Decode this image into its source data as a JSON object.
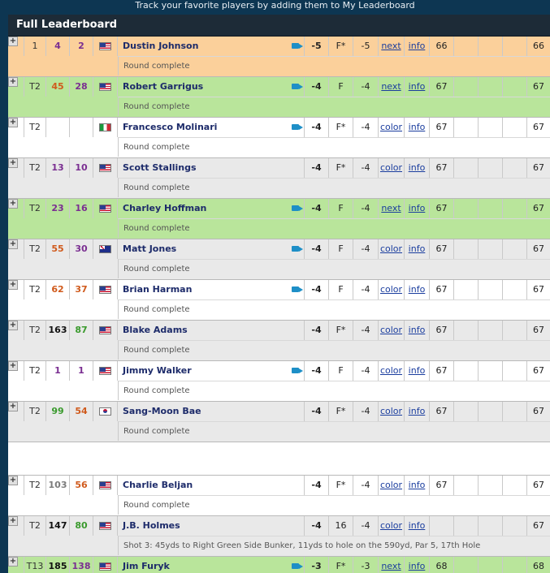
{
  "banner": {
    "text": "Track your favorite players by adding them to My Leaderboard"
  },
  "leaderboard": {
    "title": "Full Leaderboard",
    "players": [
      {
        "pos": "1",
        "r1": "4",
        "r1c": "num-purple",
        "r2": "2",
        "r2c": "num-purple",
        "flag": "us",
        "name": "Dustin Johnson",
        "cam": true,
        "tot": "-5",
        "thru": "F*",
        "today": "-5",
        "link1": "next",
        "link2": "info",
        "r": "66",
        "sum": "66",
        "status": "Round complete",
        "bg": "orange"
      },
      {
        "pos": "T2",
        "r1": "45",
        "r1c": "num-orange",
        "r2": "28",
        "r2c": "num-purple",
        "flag": "us",
        "name": "Robert Garrigus",
        "cam": true,
        "tot": "-4",
        "thru": "F",
        "today": "-4",
        "link1": "next",
        "link2": "info",
        "r": "67",
        "sum": "67",
        "status": "Round complete",
        "bg": "green"
      },
      {
        "pos": "T2",
        "r1": "",
        "r1c": "num-black",
        "r2": "",
        "r2c": "num-black",
        "flag": "it",
        "name": "Francesco Molinari",
        "cam": true,
        "tot": "-4",
        "thru": "F*",
        "today": "-4",
        "link1": "color",
        "link2": "info",
        "r": "67",
        "sum": "67",
        "status": "Round complete",
        "bg": "white"
      },
      {
        "pos": "T2",
        "r1": "13",
        "r1c": "num-purple",
        "r2": "10",
        "r2c": "num-purple",
        "flag": "us",
        "name": "Scott Stallings",
        "cam": false,
        "tot": "-4",
        "thru": "F*",
        "today": "-4",
        "link1": "color",
        "link2": "info",
        "r": "67",
        "sum": "67",
        "status": "Round complete",
        "bg": "gray"
      },
      {
        "pos": "T2",
        "r1": "23",
        "r1c": "num-purple",
        "r2": "16",
        "r2c": "num-purple",
        "flag": "us",
        "name": "Charley Hoffman",
        "cam": true,
        "tot": "-4",
        "thru": "F",
        "today": "-4",
        "link1": "next",
        "link2": "info",
        "r": "67",
        "sum": "67",
        "status": "Round complete",
        "bg": "green"
      },
      {
        "pos": "T2",
        "r1": "55",
        "r1c": "num-orange",
        "r2": "30",
        "r2c": "num-purple",
        "flag": "au",
        "name": "Matt Jones",
        "cam": true,
        "tot": "-4",
        "thru": "F",
        "today": "-4",
        "link1": "color",
        "link2": "info",
        "r": "67",
        "sum": "67",
        "status": "Round complete",
        "bg": "gray"
      },
      {
        "pos": "T2",
        "r1": "62",
        "r1c": "num-orange",
        "r2": "37",
        "r2c": "num-orange",
        "flag": "us",
        "name": "Brian Harman",
        "cam": true,
        "tot": "-4",
        "thru": "F",
        "today": "-4",
        "link1": "color",
        "link2": "info",
        "r": "67",
        "sum": "67",
        "status": "Round complete",
        "bg": "white"
      },
      {
        "pos": "T2",
        "r1": "163",
        "r1c": "num-black",
        "r2": "87",
        "r2c": "num-green",
        "flag": "us",
        "name": "Blake Adams",
        "cam": false,
        "tot": "-4",
        "thru": "F*",
        "today": "-4",
        "link1": "color",
        "link2": "info",
        "r": "67",
        "sum": "67",
        "status": "Round complete",
        "bg": "gray"
      },
      {
        "pos": "T2",
        "r1": "1",
        "r1c": "num-purple",
        "r2": "1",
        "r2c": "num-purple",
        "flag": "us",
        "name": "Jimmy Walker",
        "cam": true,
        "tot": "-4",
        "thru": "F",
        "today": "-4",
        "link1": "color",
        "link2": "info",
        "r": "67",
        "sum": "67",
        "status": "Round complete",
        "bg": "white"
      },
      {
        "pos": "T2",
        "r1": "99",
        "r1c": "num-green",
        "r2": "54",
        "r2c": "num-orange",
        "flag": "kr",
        "name": "Sang-Moon Bae",
        "cam": false,
        "tot": "-4",
        "thru": "F*",
        "today": "-4",
        "link1": "color",
        "link2": "info",
        "r": "67",
        "sum": "67",
        "status": "Round complete",
        "bg": "gray"
      }
    ],
    "players_after_gap": [
      {
        "pos": "T2",
        "r1": "103",
        "r1c": "num-gray",
        "r2": "56",
        "r2c": "num-orange",
        "flag": "us",
        "name": "Charlie Beljan",
        "cam": false,
        "tot": "-4",
        "thru": "F*",
        "today": "-4",
        "link1": "color",
        "link2": "info",
        "r": "67",
        "sum": "67",
        "status": "Round complete",
        "bg": "white"
      },
      {
        "pos": "T2",
        "r1": "147",
        "r1c": "num-black",
        "r2": "80",
        "r2c": "num-green",
        "flag": "us",
        "name": "J.B. Holmes",
        "cam": false,
        "tot": "-4",
        "thru": "16",
        "today": "-4",
        "link1": "color",
        "link2": "info",
        "r": "",
        "sum": "67",
        "status": "Shot 3: 45yds to Right Green Side Bunker, 11yds to hole on the 590yd, Par 5, 17th Hole",
        "bg": "gray"
      },
      {
        "pos": "T13",
        "r1": "185",
        "r1c": "num-black",
        "r2": "138",
        "r2c": "num-purple",
        "flag": "us",
        "name": "Jim Furyk",
        "cam": true,
        "tot": "-3",
        "thru": "F*",
        "today": "-3",
        "link1": "next",
        "link2": "info",
        "r": "68",
        "sum": "68",
        "status": "",
        "bg": "green"
      }
    ]
  }
}
